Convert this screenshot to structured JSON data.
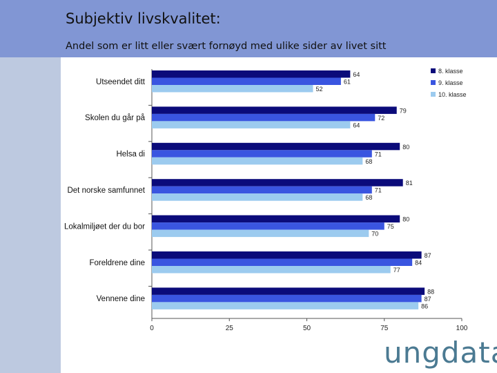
{
  "header": {
    "title": "Subjektiv livskvalitet:",
    "subtitle": "Andel som er litt eller svært fornøyd med ulike sider av livet sitt"
  },
  "brand": {
    "logo_text": "ungdata"
  },
  "colors": {
    "header_bg": "#8196d4",
    "sidebar_bg": "#bdc9e0",
    "series": [
      "#0b0b7a",
      "#3a55e0",
      "#9ccbef"
    ]
  },
  "chart_data": {
    "type": "bar",
    "orientation": "horizontal",
    "title": "",
    "xlabel": "",
    "ylabel": "",
    "xlim": [
      0,
      100
    ],
    "x_ticks": [
      "0",
      "25",
      "50",
      "75",
      "100"
    ],
    "grid": false,
    "legend_position": "top-right",
    "categories": [
      "Utseendet ditt",
      "Skolen du går på",
      "Helsa di",
      "Det norske samfunnet",
      "Lokalmiljøet der du bor",
      "Foreldrene dine",
      "Vennene dine"
    ],
    "series": [
      {
        "name": "8. klasse",
        "color": "#0b0b7a",
        "values": [
          64,
          79,
          80,
          81,
          80,
          87,
          88
        ]
      },
      {
        "name": "9. klasse",
        "color": "#3a55e0",
        "values": [
          61,
          72,
          71,
          71,
          75,
          84,
          87
        ]
      },
      {
        "name": "10. klasse",
        "color": "#9ccbef",
        "values": [
          52,
          64,
          68,
          68,
          70,
          77,
          86
        ]
      }
    ]
  }
}
